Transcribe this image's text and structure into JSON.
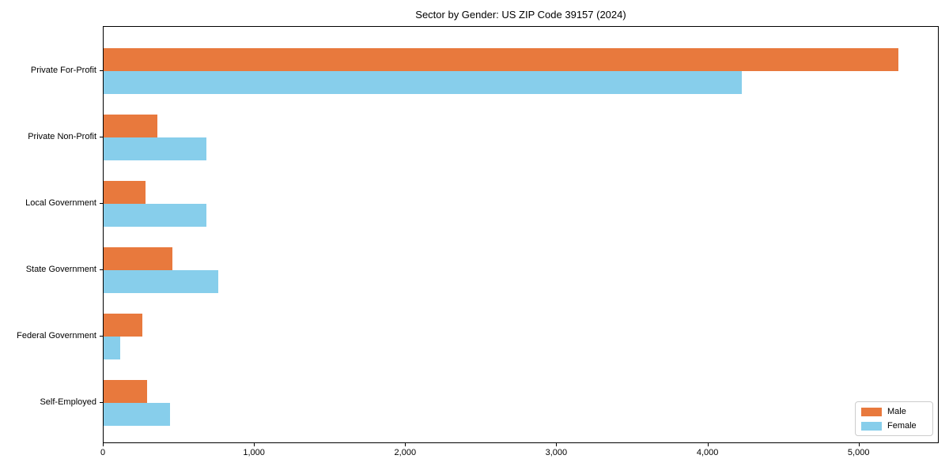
{
  "title": "Sector by Gender: US ZIP Code 39157 (2024)",
  "legend": {
    "position": "lower right",
    "items": [
      {
        "label": "Male",
        "color": "#E8793D"
      },
      {
        "label": "Female",
        "color": "#87CEEB"
      }
    ]
  },
  "chart_data": {
    "type": "bar",
    "orientation": "horizontal",
    "title": "Sector by Gender: US ZIP Code 39157 (2024)",
    "categories": [
      "Private For-Profit",
      "Private Non-Profit",
      "Local Government",
      "State Government",
      "Federal Government",
      "Self-Employed"
    ],
    "series": [
      {
        "name": "Male",
        "color": "#E8793D",
        "values": [
          5260,
          355,
          275,
          455,
          255,
          285
        ]
      },
      {
        "name": "Female",
        "color": "#87CEEB",
        "values": [
          4220,
          680,
          680,
          760,
          110,
          440
        ]
      }
    ],
    "xlabel": "",
    "ylabel": "",
    "xlim": [
      0,
      5530
    ],
    "xticks": [
      0,
      1000,
      2000,
      3000,
      4000,
      5000
    ],
    "xtick_labels": [
      "0",
      "1,000",
      "2,000",
      "3,000",
      "4,000",
      "5,000"
    ],
    "grid": false,
    "legend_position": "lower right"
  }
}
